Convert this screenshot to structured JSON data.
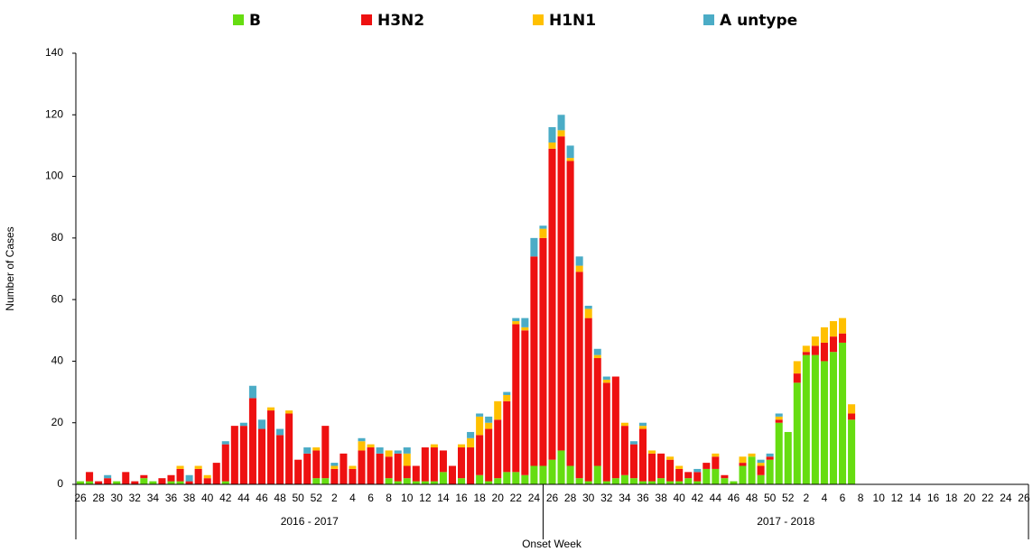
{
  "chart_data": {
    "type": "stacked_bar",
    "y_label": "Number of Cases",
    "x_label": "Onset Week",
    "groups": [
      "2016 - 2017",
      "2017 - 2018"
    ],
    "categories": [
      "26",
      null,
      "28",
      null,
      "30",
      null,
      "32",
      null,
      "34",
      null,
      "36",
      null,
      "38",
      null,
      "40",
      null,
      "42",
      null,
      "44",
      null,
      "46",
      null,
      "48",
      null,
      "50",
      null,
      "52",
      null,
      "2",
      null,
      "4",
      null,
      "6",
      null,
      "8",
      null,
      "10",
      null,
      "12",
      null,
      "14",
      null,
      "16",
      null,
      "18",
      null,
      "20",
      null,
      "22",
      null,
      "24",
      null,
      "26",
      null,
      "28",
      null,
      "30",
      null,
      "32",
      null,
      "34",
      null,
      "36",
      null,
      "38",
      null,
      "40",
      null,
      "42",
      null,
      "44",
      null,
      "46",
      null,
      "48",
      null,
      "50",
      null,
      "52",
      null,
      "2",
      null,
      "4",
      null,
      "6",
      null,
      "8",
      null,
      "10",
      null,
      "12",
      null,
      "14",
      null,
      "16",
      null,
      "18",
      null,
      "20",
      null,
      "22",
      null,
      "24",
      null,
      "26"
    ],
    "ylim": [
      0,
      140
    ],
    "yticks": [
      0,
      20,
      40,
      60,
      80,
      100,
      120,
      140
    ],
    "series": [
      {
        "name": "B",
        "color": "#66dd11",
        "values": [
          1,
          1,
          0,
          0,
          1,
          0,
          0,
          2,
          1,
          0,
          1,
          1,
          0,
          0,
          0,
          0,
          1,
          0,
          0,
          0,
          0,
          0,
          0,
          0,
          0,
          0,
          2,
          2,
          0,
          0,
          0,
          0,
          0,
          0,
          2,
          1,
          2,
          1,
          1,
          1,
          4,
          0,
          2,
          0,
          3,
          1,
          2,
          4,
          4,
          3,
          6,
          6,
          8,
          11,
          6,
          2,
          1,
          6,
          1,
          2,
          3,
          2,
          1,
          1,
          2,
          1,
          1,
          2,
          1,
          5,
          5,
          2,
          1,
          6,
          9,
          3,
          8,
          20,
          17,
          33,
          42,
          42,
          40,
          43,
          46,
          21,
          null,
          null,
          null,
          null,
          null,
          null,
          null,
          null,
          null,
          null,
          null,
          null,
          null,
          null,
          null,
          null,
          null,
          null,
          null
        ]
      },
      {
        "name": "H3N2",
        "color": "#ee1111",
        "values": [
          0,
          3,
          1,
          2,
          0,
          4,
          1,
          1,
          0,
          2,
          2,
          4,
          1,
          5,
          2,
          7,
          12,
          19,
          19,
          28,
          18,
          24,
          16,
          23,
          8,
          10,
          9,
          17,
          5,
          10,
          5,
          11,
          12,
          10,
          7,
          9,
          4,
          5,
          11,
          11,
          7,
          6,
          10,
          12,
          13,
          17,
          19,
          23,
          48,
          47,
          68,
          74,
          101,
          102,
          99,
          67,
          53,
          35,
          32,
          33,
          16,
          11,
          17,
          9,
          8,
          7,
          4,
          2,
          3,
          2,
          4,
          1,
          0,
          1,
          0,
          3,
          1,
          1,
          0,
          3,
          1,
          3,
          6,
          5,
          3,
          2,
          null,
          null,
          null,
          null,
          null,
          null,
          null,
          null,
          null,
          null,
          null,
          null,
          null,
          null,
          null,
          null,
          null,
          null,
          null
        ]
      },
      {
        "name": "H1N1",
        "color": "#ffc000",
        "values": [
          0,
          0,
          0,
          0,
          0,
          0,
          0,
          0,
          0,
          0,
          0,
          1,
          0,
          1,
          1,
          0,
          0,
          0,
          0,
          0,
          0,
          1,
          0,
          1,
          0,
          0,
          1,
          0,
          1,
          0,
          1,
          3,
          1,
          0,
          2,
          0,
          4,
          0,
          0,
          1,
          0,
          0,
          1,
          3,
          6,
          2,
          6,
          2,
          1,
          1,
          0,
          3,
          2,
          2,
          1,
          2,
          3,
          1,
          1,
          0,
          1,
          0,
          1,
          1,
          0,
          1,
          1,
          0,
          0,
          0,
          1,
          0,
          0,
          2,
          1,
          1,
          0,
          1,
          0,
          4,
          2,
          3,
          5,
          5,
          5,
          3,
          null,
          null,
          null,
          null,
          null,
          null,
          null,
          null,
          null,
          null,
          null,
          null,
          null,
          null,
          null,
          null,
          null,
          null,
          null
        ]
      },
      {
        "name": "A untype",
        "color": "#4bacc6",
        "values": [
          0,
          0,
          0,
          1,
          0,
          0,
          0,
          0,
          0,
          0,
          0,
          0,
          2,
          0,
          0,
          0,
          1,
          0,
          1,
          4,
          3,
          0,
          2,
          0,
          0,
          2,
          0,
          0,
          1,
          0,
          0,
          1,
          0,
          2,
          0,
          1,
          2,
          0,
          0,
          0,
          0,
          0,
          0,
          2,
          1,
          2,
          0,
          1,
          1,
          3,
          6,
          1,
          5,
          5,
          4,
          3,
          1,
          2,
          1,
          0,
          0,
          1,
          1,
          0,
          0,
          0,
          0,
          0,
          1,
          0,
          0,
          0,
          0,
          0,
          0,
          1,
          1,
          1,
          0,
          0,
          0,
          0,
          0,
          0,
          0,
          0,
          null,
          null,
          null,
          null,
          null,
          null,
          null,
          null,
          null,
          null,
          null,
          null,
          null,
          null,
          null,
          null,
          null,
          null,
          null
        ]
      }
    ]
  }
}
